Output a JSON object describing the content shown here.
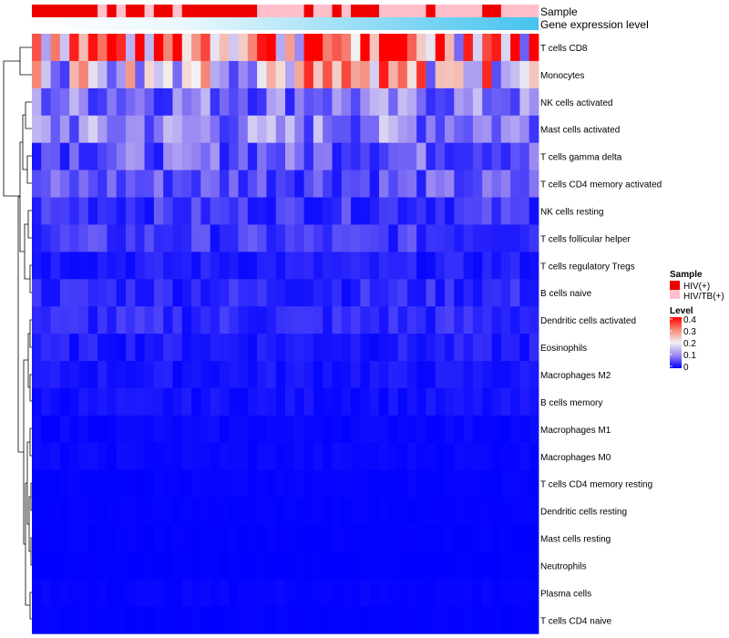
{
  "chart_data": {
    "type": "heatmap",
    "annotations": {
      "sample_label": "Sample",
      "gene_label": "Gene expression level",
      "sample_groups": [
        "HIV(+)",
        "HIV/TB(+)"
      ],
      "sample_colors": {
        "HIV(+)": "#ee0000",
        "HIV/TB(+)": "#ffc0cb"
      },
      "sample_pattern": [
        0,
        0,
        0,
        0,
        0,
        0,
        0,
        1,
        0,
        1,
        0,
        0,
        1,
        0,
        0,
        1,
        0,
        0,
        0,
        0,
        0,
        0,
        0,
        0,
        1,
        1,
        1,
        1,
        1,
        0,
        1,
        1,
        0,
        1,
        0,
        0,
        0,
        1,
        1,
        1,
        1,
        1,
        0,
        1,
        1,
        1,
        1,
        1,
        0,
        0,
        1,
        1,
        1,
        1
      ]
    },
    "rows": [
      "T cells CD8",
      "Monocytes",
      "NK cells activated",
      "Mast cells activated",
      "T cells gamma delta",
      "T cells CD4 memory activated",
      "NK cells resting",
      "T cells follicular helper",
      "T cells regulatory  Tregs",
      "B cells naive",
      "Dendritic cells activated",
      "Eosinophils",
      "Macrophages M2",
      "B cells memory",
      "Macrophages M1",
      "Macrophages M0",
      "T cells CD4 memory resting",
      "Dendritic cells resting",
      "Mast cells resting",
      "Neutrophils",
      "Plasma cells",
      "T cells CD4 naive"
    ],
    "n_columns": 54,
    "row_mean_levels": [
      0.34,
      0.22,
      0.09,
      0.1,
      0.07,
      0.06,
      0.04,
      0.04,
      0.02,
      0.03,
      0.03,
      0.02,
      0.015,
      0.012,
      0.006,
      0.006,
      0.003,
      0.002,
      0.002,
      0.001,
      0.004,
      0.002
    ],
    "color_scale": {
      "stops": [
        0,
        0.1,
        0.2,
        0.3,
        0.4
      ],
      "colors": [
        "#0000ff",
        "#9a88f2",
        "#f2f2f2",
        "#f58a7a",
        "#ff0000"
      ],
      "domain": [
        0,
        0.4
      ]
    },
    "legend": {
      "sample_title": "Sample",
      "level_title": "Level",
      "level_ticks": [
        "0.4",
        "0.3",
        "0.2",
        "0.1",
        "0"
      ]
    }
  }
}
